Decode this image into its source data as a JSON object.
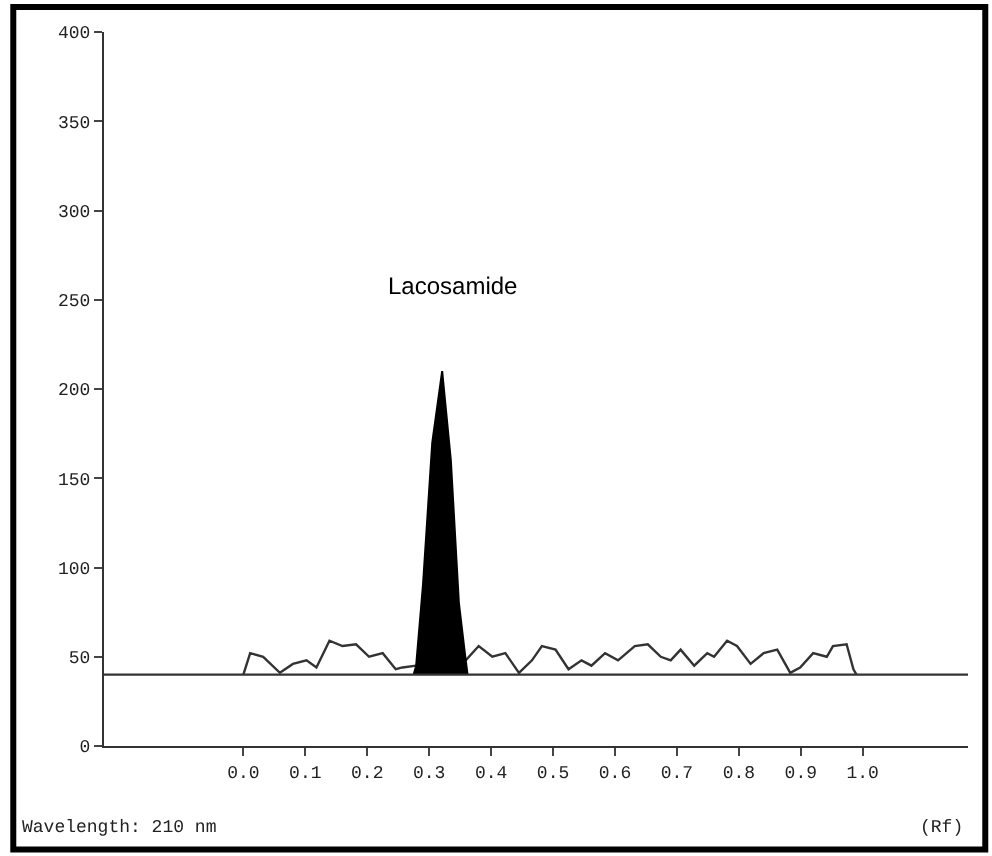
{
  "chart_data": {
    "type": "line",
    "xlim": [
      -0.225,
      1.17
    ],
    "ylim": [
      0,
      400
    ],
    "xticks": [
      {
        "value": 0,
        "label": "0.0"
      },
      {
        "value": 0.1,
        "label": "0.1"
      },
      {
        "value": 0.2,
        "label": "0.2"
      },
      {
        "value": 0.3,
        "label": "0.3"
      },
      {
        "value": 0.4,
        "label": "0.4"
      },
      {
        "value": 0.5,
        "label": "0.5"
      },
      {
        "value": 0.6,
        "label": "0.6"
      },
      {
        "value": 0.7,
        "label": "0.7"
      },
      {
        "value": 0.8,
        "label": "0.8"
      },
      {
        "value": 0.9,
        "label": "0.9"
      },
      {
        "value": 1.0,
        "label": "1.0"
      }
    ],
    "yticks": [
      0,
      50,
      100,
      150,
      200,
      250,
      300,
      350,
      400
    ],
    "series": [
      {
        "color": "#333333",
        "x": [
          0.0,
          0.011,
          0.032,
          0.059,
          0.08,
          0.102,
          0.118,
          0.139,
          0.16,
          0.182,
          0.203,
          0.225,
          0.246,
          0.257,
          0.279,
          0.359,
          0.38,
          0.402,
          0.423,
          0.445,
          0.466,
          0.482,
          0.504,
          0.525,
          0.546,
          0.562,
          0.584,
          0.605,
          0.632,
          0.653,
          0.674,
          0.69,
          0.706,
          0.728,
          0.749,
          0.76,
          0.781,
          0.797,
          0.819,
          0.84,
          0.862,
          0.883,
          0.899,
          0.92,
          0.942,
          0.952,
          0.974,
          0.985,
          0.99
        ],
        "values": [
          40,
          52,
          50,
          41,
          46,
          48,
          44,
          59,
          56,
          57,
          50,
          52,
          43,
          44,
          45,
          48,
          56,
          50,
          52,
          41,
          48,
          56,
          54,
          43,
          48,
          45,
          52,
          48,
          56,
          57,
          50,
          48,
          54,
          45,
          52,
          50,
          59,
          56,
          46,
          52,
          54,
          41,
          44,
          52,
          50,
          56,
          57,
          43,
          40
        ]
      },
      {
        "type": "area",
        "color": "#000000",
        "x": [
          0.275,
          0.279,
          0.29,
          0.305,
          0.321,
          0.335,
          0.348,
          0.359,
          0.362
        ],
        "values": [
          40,
          45,
          90,
          170,
          210,
          160,
          80,
          48,
          40
        ]
      }
    ],
    "ref_lines": [
      {
        "axis": "y",
        "value": 40,
        "color": "#333333"
      }
    ],
    "annotations": [
      "Lacosamide",
      "Wavelength: 210 nm",
      "(Rf)"
    ]
  }
}
